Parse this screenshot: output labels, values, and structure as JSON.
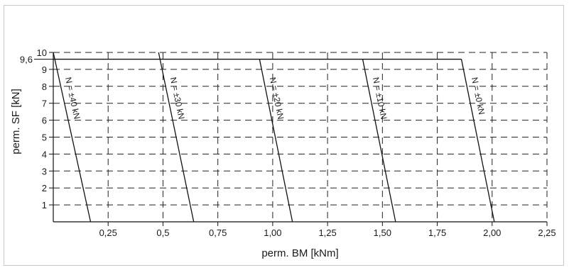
{
  "chart_data": {
    "type": "line",
    "title": "",
    "xlabel": "perm. BM [kNm]",
    "ylabel": "perm. SF [kN]",
    "xlim": [
      0,
      2.25
    ],
    "ylim": [
      0,
      10
    ],
    "x_ticks": [
      0.25,
      0.5,
      0.75,
      1.0,
      1.25,
      1.5,
      1.75,
      2.0,
      2.25
    ],
    "x_tick_labels": [
      "0,25",
      "0,5",
      "0,75",
      "1,00",
      "1,25",
      "1,50",
      "1,75",
      "2,00",
      "2,25"
    ],
    "y_ticks": [
      1,
      2,
      3,
      4,
      5,
      6,
      7,
      8,
      9,
      10
    ],
    "y_tick_labels": [
      "1",
      "2",
      "3",
      "4",
      "5",
      "6",
      "7",
      "8",
      "9",
      "10"
    ],
    "y_extra_tick": {
      "value": 9.6,
      "label": "9,6"
    },
    "grid": true,
    "cap_line": {
      "y": 9.6,
      "x_start": 0,
      "x_end": 1.86
    },
    "series": [
      {
        "name": "N = ±40 kN",
        "points": [
          [
            0.0,
            10.0
          ],
          [
            0.17,
            0.0
          ]
        ]
      },
      {
        "name": "N = ±30 kN",
        "points": [
          [
            0.48,
            10.0
          ],
          [
            0.64,
            0.0
          ]
        ]
      },
      {
        "name": "N = ±20 kN",
        "points": [
          [
            0.94,
            9.6
          ],
          [
            1.09,
            0.0
          ]
        ]
      },
      {
        "name": "N = ±10 kN",
        "points": [
          [
            1.41,
            9.6
          ],
          [
            1.56,
            0.0
          ]
        ]
      },
      {
        "name": "N = ±0 kN",
        "points": [
          [
            1.86,
            9.6
          ],
          [
            2.01,
            0.0
          ]
        ]
      }
    ]
  }
}
